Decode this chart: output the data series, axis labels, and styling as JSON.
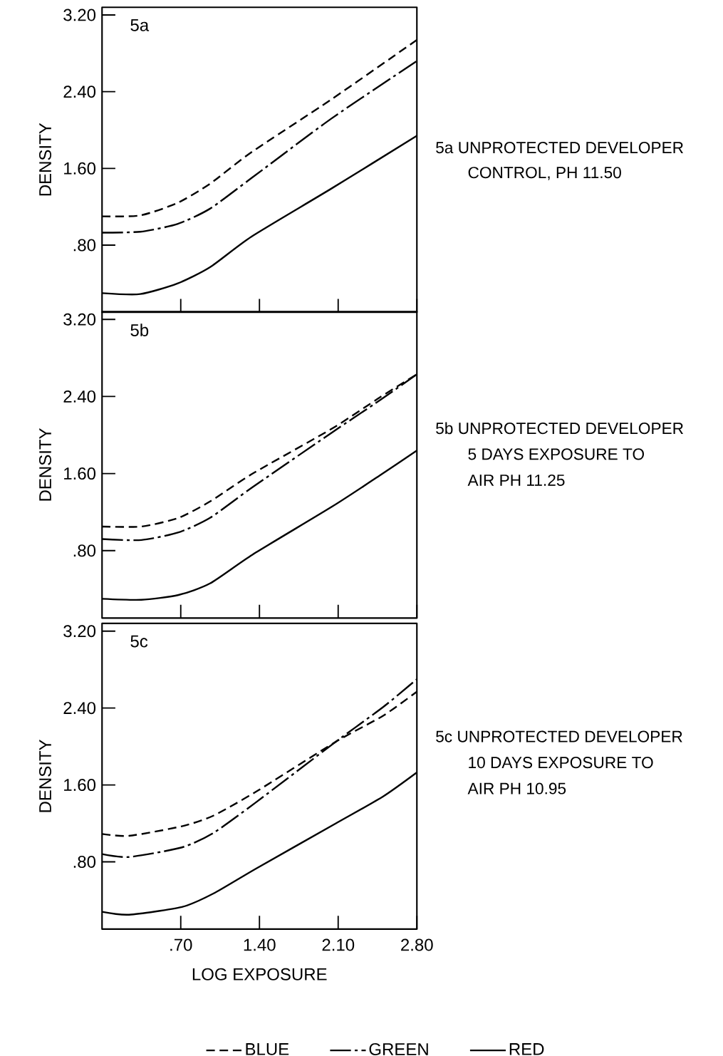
{
  "chart_data": [
    {
      "type": "line",
      "ylabel": "DENSITY",
      "xlim": [
        0,
        2.8
      ],
      "ylim": [
        0.1,
        3.28
      ],
      "xticks": [
        {
          "value": 0.7,
          "label": null
        },
        {
          "value": 1.4,
          "label": null
        },
        {
          "value": 2.1,
          "label": null
        },
        {
          "value": 2.8,
          "label": null
        }
      ],
      "yticks": [
        {
          "value": 0.8,
          "label": ".80"
        },
        {
          "value": 1.6,
          "label": "1.60"
        },
        {
          "value": 2.4,
          "label": "2.40"
        },
        {
          "value": 3.2,
          "label": "3.20"
        }
      ],
      "tick_labels": "y",
      "x": [
        0,
        0.34,
        0.67,
        0.96,
        1.33,
        2.04,
        2.8
      ],
      "annotations": [
        "5a",
        "5a UNPROTECTED DEVELOPER",
        "CONTROL, PH 11.50"
      ],
      "series": [
        {
          "color": "#000000",
          "line_style": "dashed",
          "values": [
            1.1,
            1.11,
            1.24,
            1.44,
            1.77,
            2.32,
            2.94
          ]
        },
        {
          "color": "#000000",
          "line_style": "dashdot",
          "values": [
            0.93,
            0.94,
            1.02,
            1.18,
            1.5,
            2.12,
            2.72
          ]
        },
        {
          "color": "#000000",
          "line_style": "solid",
          "values": [
            0.3,
            0.29,
            0.4,
            0.57,
            0.89,
            1.39,
            1.94
          ]
        }
      ]
    },
    {
      "type": "line",
      "ylabel": "DENSITY",
      "xlim": [
        0,
        2.8
      ],
      "ylim": [
        0.1,
        3.28
      ],
      "xticks": [
        {
          "value": 0.7,
          "label": null
        },
        {
          "value": 1.4,
          "label": null
        },
        {
          "value": 2.1,
          "label": null
        },
        {
          "value": 2.8,
          "label": null
        }
      ],
      "yticks": [
        {
          "value": 0.8,
          "label": ".80"
        },
        {
          "value": 1.6,
          "label": "1.60"
        },
        {
          "value": 2.4,
          "label": "2.40"
        },
        {
          "value": 3.2,
          "label": "3.20"
        }
      ],
      "tick_labels": "y",
      "x": [
        0,
        0.35,
        0.68,
        0.96,
        1.34,
        2.05,
        2.47,
        2.8
      ],
      "annotations": [
        "5b",
        "5b UNPROTECTED DEVELOPER",
        "5 DAYS EXPOSURE TO",
        "AIR PH 11.25"
      ],
      "series": [
        {
          "color": "#000000",
          "line_style": "dashed",
          "values": [
            1.05,
            1.05,
            1.14,
            1.31,
            1.6,
            2.07,
            2.39,
            2.63
          ]
        },
        {
          "color": "#000000",
          "line_style": "dashdot",
          "values": [
            0.92,
            0.91,
            0.99,
            1.14,
            1.46,
            2.03,
            2.36,
            2.63
          ]
        },
        {
          "color": "#000000",
          "line_style": "solid",
          "values": [
            0.3,
            0.29,
            0.34,
            0.46,
            0.76,
            1.26,
            1.58,
            1.84
          ]
        }
      ]
    },
    {
      "type": "line",
      "xlabel": "LOG EXPOSURE",
      "ylabel": "DENSITY",
      "xlim": [
        0,
        2.8
      ],
      "ylim": [
        0.1,
        3.28
      ],
      "xticks": [
        {
          "value": 0.7,
          "label": ".70"
        },
        {
          "value": 1.4,
          "label": "1.40"
        },
        {
          "value": 2.1,
          "label": "2.10"
        },
        {
          "value": 2.8,
          "label": "2.80"
        }
      ],
      "yticks": [
        {
          "value": 0.8,
          "label": ".80"
        },
        {
          "value": 1.6,
          "label": "1.60"
        },
        {
          "value": 2.4,
          "label": "2.40"
        },
        {
          "value": 3.2,
          "label": "3.20"
        }
      ],
      "x": [
        0,
        0.24,
        0.71,
        0.99,
        1.37,
        2.08,
        2.5,
        2.8
      ],
      "annotations": [
        "5c",
        "5c UNPROTECTED DEVELOPER",
        "10 DAYS EXPOSURE TO",
        "AIR PH 10.95"
      ],
      "legend": "bottom",
      "series": [
        {
          "name": "BLUE",
          "color": "#000000",
          "line_style": "dashed",
          "values": [
            1.09,
            1.07,
            1.17,
            1.28,
            1.53,
            2.05,
            2.32,
            2.57
          ]
        },
        {
          "name": "GREEN",
          "color": "#000000",
          "line_style": "dashdot",
          "values": [
            0.88,
            0.85,
            0.95,
            1.1,
            1.42,
            2.05,
            2.41,
            2.7
          ]
        },
        {
          "name": "RED",
          "color": "#000000",
          "line_style": "solid",
          "values": [
            0.28,
            0.25,
            0.33,
            0.47,
            0.73,
            1.2,
            1.48,
            1.73
          ]
        }
      ]
    }
  ]
}
